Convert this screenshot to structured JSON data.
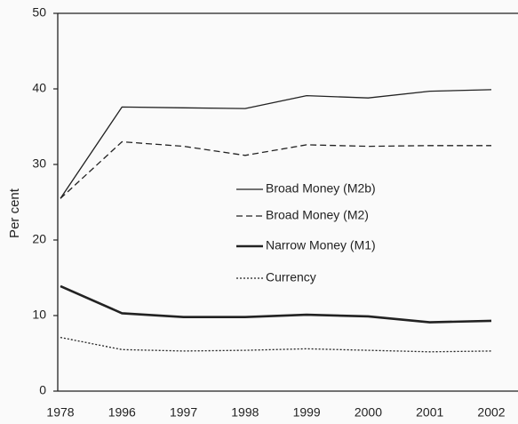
{
  "chart_data": {
    "type": "line",
    "y_label": "Per cent",
    "categories": [
      "1978",
      "1996",
      "1997",
      "1998",
      "1999",
      "2000",
      "2001",
      "2002"
    ],
    "series": [
      {
        "name": "Broad Money (M2b)",
        "color": "#222222",
        "dash": "solid",
        "width": 1.3,
        "values": [
          25.5,
          37.6,
          37.5,
          37.4,
          39.1,
          38.8,
          39.7,
          39.9
        ]
      },
      {
        "name": "Broad Money (M2)",
        "color": "#222222",
        "dash": "dashed",
        "width": 1.3,
        "values": [
          25.5,
          33,
          32.4,
          31.2,
          32.6,
          32.4,
          32.5,
          32.5
        ]
      },
      {
        "name": "Narrow Money (M1)",
        "color": "#222222",
        "dash": "solid",
        "width": 2.6,
        "values": [
          13.9,
          10.3,
          9.8,
          9.8,
          10.1,
          9.9,
          9.1,
          9.3
        ]
      },
      {
        "name": "Currency",
        "color": "#222222",
        "dash": "dotted",
        "width": 1.3,
        "values": [
          7.1,
          5.5,
          5.3,
          5.4,
          5.6,
          5.4,
          5.2,
          5.3
        ]
      }
    ],
    "ylim": [
      0,
      50
    ],
    "yticks": [
      0,
      10,
      20,
      30,
      40,
      50
    ],
    "grid": false,
    "legend": "center"
  }
}
